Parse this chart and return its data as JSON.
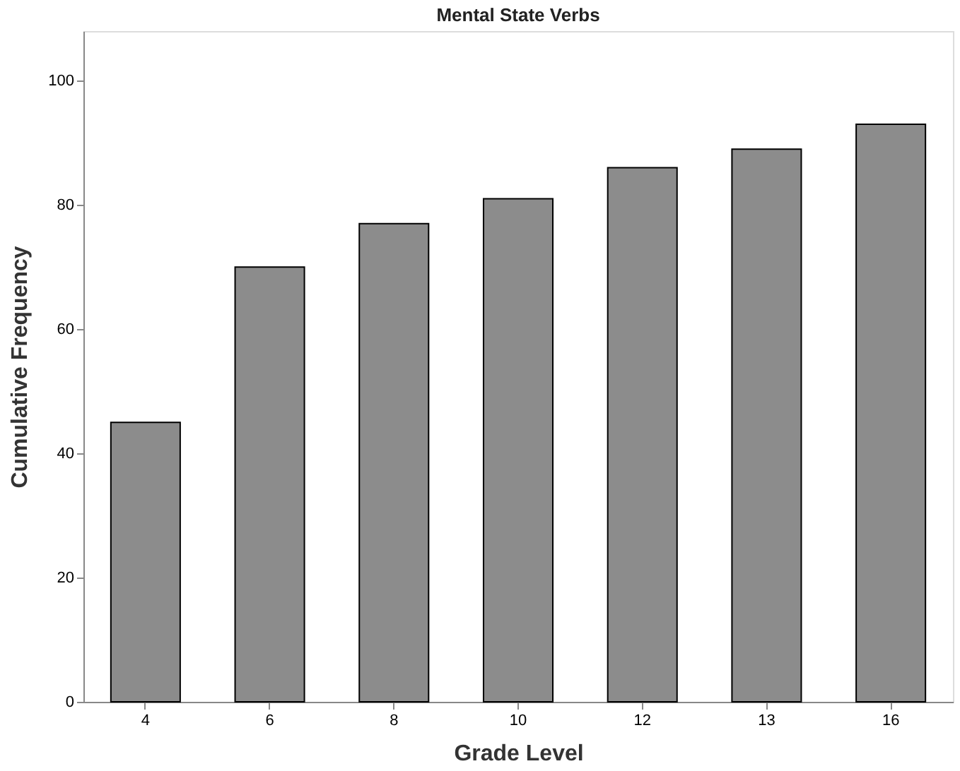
{
  "chart_data": {
    "type": "bar",
    "title": "Mental State Verbs",
    "xlabel": "Grade Level",
    "ylabel": "Cumulative Frequency",
    "categories": [
      "4",
      "6",
      "8",
      "10",
      "12",
      "13",
      "16"
    ],
    "values": [
      45,
      70,
      77,
      81,
      86,
      89,
      93
    ],
    "color": "#8c8c8c",
    "ylim": [
      0,
      108
    ],
    "yticks": [
      0,
      20,
      40,
      60,
      80,
      100
    ],
    "grid": false
  }
}
